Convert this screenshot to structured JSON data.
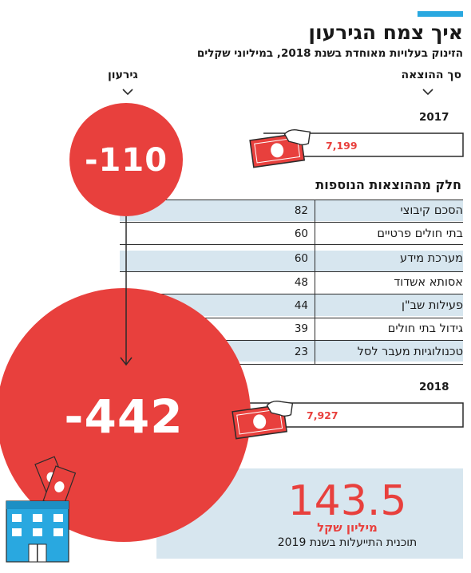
{
  "title": "איך צמח הגירעון",
  "subtitle": "הזינוק בעלויות מאוחדת בשנת 2018, במיליוני שקלים",
  "column_headers": {
    "deficit": "גירעון",
    "cost": "סך ההוצאה"
  },
  "years": [
    {
      "year": "2017",
      "deficit": "-110",
      "cost": "7,199"
    },
    {
      "year": "2018",
      "deficit": "-442",
      "cost": "7,927"
    }
  ],
  "extra_costs_title": "חלק מההוצאות הנוספות",
  "extra_costs": [
    {
      "label": "הסכם קיבוצי",
      "value": "82"
    },
    {
      "label": "בתי חולים פרטיים",
      "value": "60"
    },
    {
      "label": "מערכת מידע",
      "value": "60"
    },
    {
      "label": "אסותא אשדוד",
      "value": "48"
    },
    {
      "label": "פעילות שב\"ן",
      "value": "44"
    },
    {
      "label": "גידול בתי חולים",
      "value": "39"
    },
    {
      "label": "טכנולוגיות מעבר לסל",
      "value": "23"
    }
  ],
  "efficiency_plan": {
    "value": "143.5",
    "unit": "מיליון שקל",
    "note": "תוכנית התייעלות בשנת 2019"
  },
  "colors": {
    "accent": "#29a8e0",
    "red": "#e8403d",
    "light_blue": "#d7e6ef",
    "dark": "#2b2b2b"
  },
  "icons": [
    "money-bill-hand-icon",
    "hospital-building-icon",
    "arrow-down-icon",
    "chevron-down-icon"
  ],
  "chart_data": {
    "type": "table",
    "title": "איך צמח הגירעון",
    "subtitle": "הזינוק בעלויות מאוחדת בשנת 2018, במיליוני שקלים",
    "categories": [
      "2017",
      "2018"
    ],
    "series": [
      {
        "name": "גירעון",
        "values": [
          -110,
          -442
        ]
      },
      {
        "name": "סך ההוצאה",
        "values": [
          7199,
          7927
        ]
      }
    ],
    "breakdown": {
      "title": "חלק מההוצאות הנוספות",
      "categories": [
        "הסכם קיבוצי",
        "בתי חולים פרטיים",
        "מערכת מידע",
        "אסותא אשדוד",
        "פעילות שב\"ן",
        "גידול בתי חולים",
        "טכנולוגיות מעבר לסל"
      ],
      "values": [
        82,
        60,
        60,
        48,
        44,
        39,
        23
      ]
    }
  }
}
